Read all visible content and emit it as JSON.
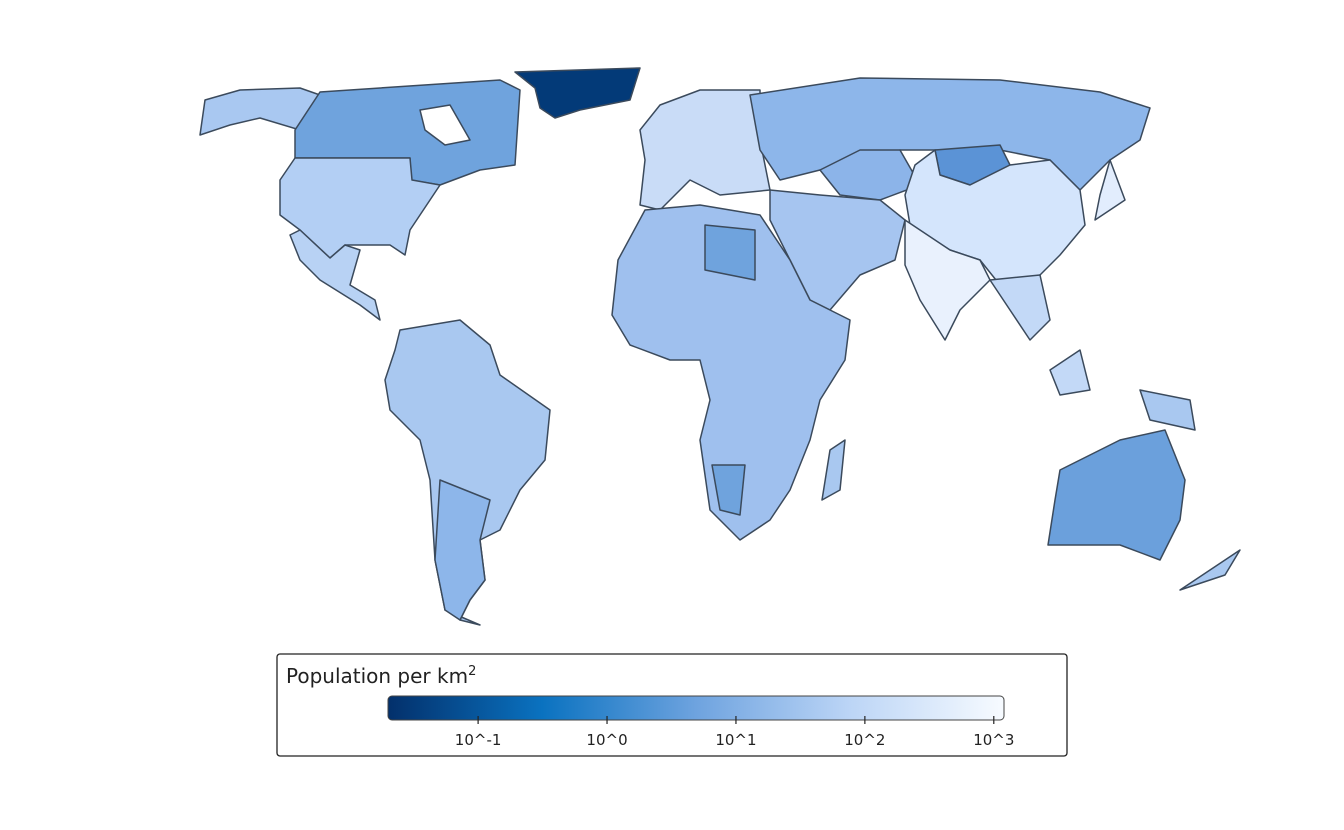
{
  "chart_data": {
    "type": "choropleth",
    "legend": {
      "title": "Population per km",
      "title_superscript": "2",
      "colorscale": [
        "#03306b",
        "#0a72c0",
        "#6ea3df",
        "#bcd5f6",
        "#f7fbff"
      ],
      "log_scale": true,
      "lim": [
        0.02,
        1200
      ],
      "ticks": [
        {
          "value": 0.1,
          "label": "10^-1"
        },
        {
          "value": 1,
          "label": "10^0"
        },
        {
          "value": 10,
          "label": "10^1"
        },
        {
          "value": 100,
          "label": "10^2"
        },
        {
          "value": 1000,
          "label": "10^3"
        }
      ]
    }
  }
}
